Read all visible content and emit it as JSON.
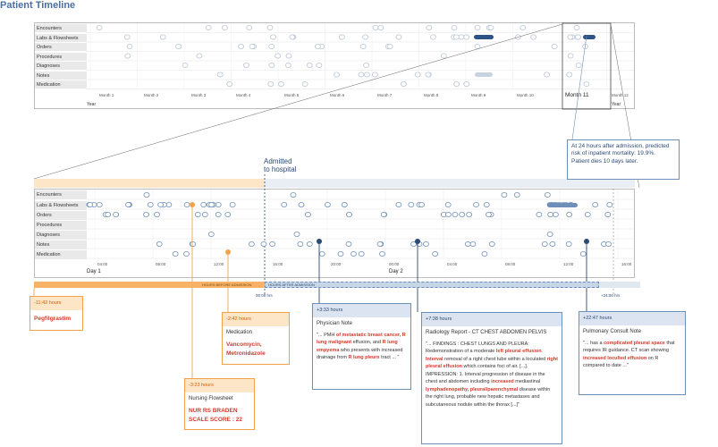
{
  "title": "Patient Timeline",
  "row_labels": [
    "Encounters",
    "Labs & Flowsheets",
    "Orders",
    "Procedures",
    "Diagnoses",
    "Notes",
    "Medication"
  ],
  "top_chart": {
    "months": [
      "Month 1",
      "Month 2",
      "Month 3",
      "Month 4",
      "Month 5",
      "Month 6",
      "Month 7",
      "Month 8",
      "Month 9",
      "Month 10",
      "Month 11",
      "Month 12"
    ],
    "year_label": "Year",
    "highlight_month": "Month 11"
  },
  "bottom_chart": {
    "times": [
      "04:00",
      "08:00",
      "12:00",
      "16:00",
      "20:00",
      "00:00",
      "04:00",
      "08:00",
      "12:00",
      "16:00"
    ],
    "day1": "Day 1",
    "day2": "Day 2",
    "admitted_label": "Admitted\nto hospital",
    "before_label": "HOURS BEFORE ADMISSION",
    "after_label": "HOURS AFTER ADMISSION",
    "zero_label": "00:00 hrs",
    "plus24_label": "+24:00 hrs"
  },
  "prediction_box": "At 24 hours after admission, predicted risk of inpatient mortality: 19.9%.\nPatient dies 10 days later.",
  "callouts": {
    "peg": {
      "time": "-11:42 hours",
      "text": "Pegfilgrastim"
    },
    "med": {
      "time": "-2:42 hours",
      "title": "Medication",
      "text": "Vancomycin, Metronidazole"
    },
    "nursing": {
      "time": "-3:23 hours",
      "title": "Nursing Flowsheet",
      "text": "NUR RS BRADEN SCALE SCORE : 22"
    },
    "physician": {
      "time": "+3:33 hours",
      "title": "Physician Note",
      "parts": [
        {
          "t": "\"... PMH ",
          "h": false
        },
        {
          "t": "of metastatic breast cancer, R lung malignant",
          "h": true
        },
        {
          "t": " effusion, and ",
          "h": false
        },
        {
          "t": "R lung empyema",
          "h": true
        },
        {
          "t": " who presents with increased drainage from ",
          "h": false
        },
        {
          "t": "R lung pleurx",
          "h": true
        },
        {
          "t": " tract ... \"",
          "h": false
        }
      ]
    },
    "radiology": {
      "time": "+7:38 hours",
      "title": "Radiology Report - CT CHEST ABDOMEN PELVIS",
      "parts": [
        {
          "t": "\"... FINDINGS : CHEST LUNGS AND PLEURA: Redemonstration of a moderate ",
          "h": false
        },
        {
          "t": "left pleural effusion",
          "h": true
        },
        {
          "t": ". ",
          "h": false
        },
        {
          "t": "Interval",
          "h": true
        },
        {
          "t": " removal of a right chest tube within a loculated ",
          "h": false
        },
        {
          "t": "right pleural effusion",
          "h": true
        },
        {
          "t": " which contains foci of air. [...]. IMPRESSION: 1. Interval progression of disease in the chest and abdomen including ",
          "h": false
        },
        {
          "t": "increased",
          "h": true
        },
        {
          "t": " mediastinal ",
          "h": false
        },
        {
          "t": "lymphadenopathy, pleural/parenchymal",
          "h": true
        },
        {
          "t": " disease within the right lung, probable new hepatic metastases and subcutaneous nodule within the thorax [...]\"",
          "h": false
        }
      ]
    },
    "pulmonary": {
      "time": "+22:47 hours",
      "title": "Pulmonary Consult Note",
      "parts": [
        {
          "t": "\"... has a ",
          "h": false
        },
        {
          "t": "complicated pleural space",
          "h": true
        },
        {
          "t": " that requires IR guidance. CT scan showing ",
          "h": false
        },
        {
          "t": "increased loculted effusion",
          "h": true
        },
        {
          "t": " on R compared to date ...\"",
          "h": false
        }
      ]
    }
  }
}
